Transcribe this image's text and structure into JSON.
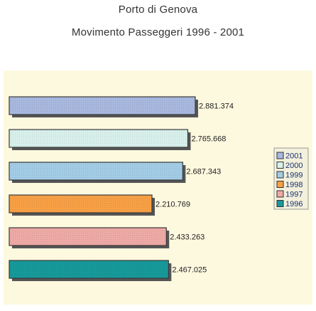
{
  "chart_data": {
    "type": "bar",
    "orientation": "horizontal",
    "title": "Porto di Genova",
    "subtitle": "Movimento Passeggeri 1996 - 2001",
    "categories": [
      "2001",
      "2000",
      "1999",
      "1998",
      "1997",
      "1996"
    ],
    "values": [
      2881374,
      2765668,
      2687343,
      2210769,
      2433263,
      2467025
    ],
    "value_labels": [
      "2.881.374",
      "2.765.668",
      "2.687.343",
      "2.210.769",
      "2.433.263",
      "2.467.025"
    ],
    "colors": [
      "#a8b8de",
      "#d8f0ec",
      "#a3cce6",
      "#f7a046",
      "#eeaaa6",
      "#17999a"
    ],
    "legend": {
      "position": "right",
      "entries": [
        "2001",
        "2000",
        "1999",
        "1998",
        "1997",
        "1996"
      ]
    },
    "xlim": [
      0,
      3000000
    ],
    "grid": false
  }
}
